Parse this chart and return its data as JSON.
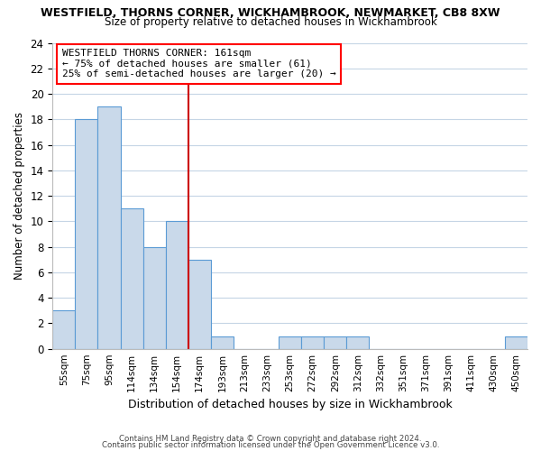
{
  "title": "WESTFIELD, THORNS CORNER, WICKHAMBROOK, NEWMARKET, CB8 8XW",
  "subtitle": "Size of property relative to detached houses in Wickhambrook",
  "xlabel": "Distribution of detached houses by size in Wickhambrook",
  "ylabel": "Number of detached properties",
  "bin_labels": [
    "55sqm",
    "75sqm",
    "95sqm",
    "114sqm",
    "134sqm",
    "154sqm",
    "174sqm",
    "193sqm",
    "213sqm",
    "233sqm",
    "253sqm",
    "272sqm",
    "292sqm",
    "312sqm",
    "332sqm",
    "351sqm",
    "371sqm",
    "391sqm",
    "411sqm",
    "430sqm",
    "450sqm"
  ],
  "bar_values": [
    3,
    18,
    19,
    11,
    8,
    10,
    7,
    1,
    0,
    0,
    1,
    1,
    1,
    1,
    0,
    0,
    0,
    0,
    0,
    0,
    1
  ],
  "bar_color": "#c9d9ea",
  "bar_edge_color": "#5b9bd5",
  "reference_line_x": 5.5,
  "annotation_title": "WESTFIELD THORNS CORNER: 161sqm",
  "annotation_line1": "← 75% of detached houses are smaller (61)",
  "annotation_line2": "25% of semi-detached houses are larger (20) →",
  "ylim": [
    0,
    24
  ],
  "yticks": [
    0,
    2,
    4,
    6,
    8,
    10,
    12,
    14,
    16,
    18,
    20,
    22,
    24
  ],
  "footer1": "Contains HM Land Registry data © Crown copyright and database right 2024.",
  "footer2": "Contains public sector information licensed under the Open Government Licence v3.0.",
  "bg_color": "#ffffff",
  "grid_color": "#c5d5e5"
}
